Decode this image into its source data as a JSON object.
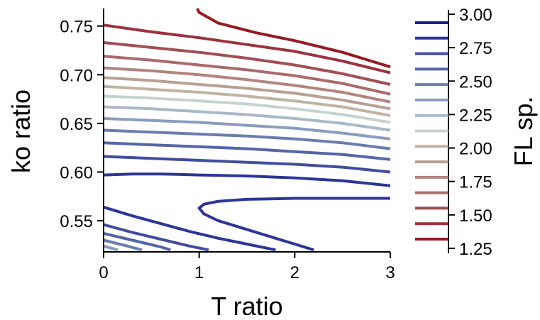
{
  "chart_data": {
    "type": "line",
    "title": "",
    "xlabel": "T ratio",
    "ylabel": "ko ratio",
    "xlim": [
      0,
      3
    ],
    "ylim": [
      0.518,
      0.768
    ],
    "xticks": [
      0,
      1,
      2,
      3
    ],
    "xtick_labels": [
      "0",
      "1",
      "2",
      "3"
    ],
    "yticks": [
      0.55,
      0.6,
      0.65,
      0.7,
      0.75
    ],
    "ytick_labels": [
      "0.55",
      "0.60",
      "0.65",
      "0.70",
      "0.75"
    ],
    "grid": false,
    "colorbar": {
      "label": "FL sp.",
      "ticks": [
        3.0,
        2.75,
        2.5,
        2.25,
        2.0,
        1.75,
        1.5,
        1.25
      ],
      "tick_labels": [
        "3.00",
        "2.75",
        "2.50",
        "2.25",
        "2.00",
        "1.75",
        "1.50",
        "1.25"
      ],
      "levels": [
        3.0,
        2.875,
        2.75,
        2.625,
        2.5,
        2.375,
        2.25,
        2.125,
        2.0,
        1.875,
        1.75,
        1.625,
        1.5,
        1.375,
        1.25
      ],
      "colors": [
        "#1a1f91",
        "#2d3597",
        "#414da0",
        "#5565a8",
        "#6b7daf",
        "#8b9cbd",
        "#a9b8c9",
        "#c6d3cd",
        "#c0b3a2",
        "#b99f94",
        "#b2847f",
        "#a96a6b",
        "#a04f55",
        "#9b323d",
        "#951b23"
      ]
    },
    "series": [
      {
        "level": 1.25,
        "color": "#951b23",
        "points": [
          [
            0.98,
            0.768
          ],
          [
            1.0,
            0.764
          ],
          [
            1.2,
            0.753
          ],
          [
            1.6,
            0.743
          ],
          [
            2.0,
            0.735
          ],
          [
            2.5,
            0.723
          ],
          [
            3.0,
            0.708
          ]
        ]
      },
      {
        "level": 1.375,
        "color": "#9b323d",
        "points": [
          [
            0,
            0.751
          ],
          [
            0.5,
            0.744
          ],
          [
            1.0,
            0.738
          ],
          [
            1.5,
            0.731
          ],
          [
            2.0,
            0.724
          ],
          [
            2.5,
            0.714
          ],
          [
            3.0,
            0.702
          ]
        ]
      },
      {
        "level": 1.5,
        "color": "#a04f55",
        "points": [
          [
            0,
            0.733
          ],
          [
            0.5,
            0.728
          ],
          [
            1.0,
            0.723
          ],
          [
            1.5,
            0.717
          ],
          [
            2.0,
            0.71
          ],
          [
            2.5,
            0.701
          ],
          [
            3.0,
            0.69
          ]
        ]
      },
      {
        "level": 1.625,
        "color": "#a96a6b",
        "points": [
          [
            0,
            0.719
          ],
          [
            0.5,
            0.715
          ],
          [
            1.0,
            0.71
          ],
          [
            1.5,
            0.705
          ],
          [
            2.0,
            0.699
          ],
          [
            2.5,
            0.691
          ],
          [
            3.0,
            0.68
          ]
        ]
      },
      {
        "level": 1.75,
        "color": "#b2847f",
        "points": [
          [
            0,
            0.707
          ],
          [
            0.5,
            0.704
          ],
          [
            1.0,
            0.7
          ],
          [
            1.5,
            0.695
          ],
          [
            2.0,
            0.689
          ],
          [
            2.5,
            0.682
          ],
          [
            3.0,
            0.672
          ]
        ]
      },
      {
        "level": 1.875,
        "color": "#b99f94",
        "points": [
          [
            0,
            0.697
          ],
          [
            0.5,
            0.694
          ],
          [
            1.0,
            0.69
          ],
          [
            1.5,
            0.686
          ],
          [
            2.0,
            0.681
          ],
          [
            2.5,
            0.674
          ],
          [
            3.0,
            0.665
          ]
        ]
      },
      {
        "level": 2.0,
        "color": "#c0b3a2",
        "points": [
          [
            0,
            0.688
          ],
          [
            0.5,
            0.685
          ],
          [
            1.0,
            0.682
          ],
          [
            1.5,
            0.678
          ],
          [
            2.0,
            0.673
          ],
          [
            2.5,
            0.667
          ],
          [
            3.0,
            0.658
          ]
        ]
      },
      {
        "level": 2.125,
        "color": "#c6d3cd",
        "points": [
          [
            0,
            0.678
          ],
          [
            0.5,
            0.676
          ],
          [
            1.0,
            0.673
          ],
          [
            1.5,
            0.67
          ],
          [
            2.0,
            0.665
          ],
          [
            2.5,
            0.659
          ],
          [
            3.0,
            0.651
          ]
        ]
      },
      {
        "level": 2.25,
        "color": "#a9b8c9",
        "points": [
          [
            0,
            0.667
          ],
          [
            0.5,
            0.665
          ],
          [
            1.0,
            0.662
          ],
          [
            1.5,
            0.659
          ],
          [
            2.0,
            0.655
          ],
          [
            2.5,
            0.65
          ],
          [
            3.0,
            0.643
          ]
        ]
      },
      {
        "level": 2.375,
        "color": "#8b9cbd",
        "points": [
          [
            0,
            0.655
          ],
          [
            0.5,
            0.653
          ],
          [
            1.0,
            0.651
          ],
          [
            1.5,
            0.648
          ],
          [
            2.0,
            0.645
          ],
          [
            2.5,
            0.64
          ],
          [
            3.0,
            0.634
          ]
        ]
      },
      {
        "level": 2.5,
        "color": "#6b7daf",
        "points": [
          [
            0,
            0.643
          ],
          [
            0.5,
            0.641
          ],
          [
            1.0,
            0.639
          ],
          [
            1.5,
            0.637
          ],
          [
            2.0,
            0.634
          ],
          [
            2.5,
            0.63
          ],
          [
            3.0,
            0.624
          ]
        ]
      },
      {
        "level": 2.625,
        "color": "#5565a8",
        "points": [
          [
            0,
            0.63
          ],
          [
            0.5,
            0.628
          ],
          [
            1.0,
            0.626
          ],
          [
            1.5,
            0.624
          ],
          [
            2.0,
            0.621
          ],
          [
            2.5,
            0.618
          ],
          [
            3.0,
            0.613
          ]
        ]
      },
      {
        "level": 2.75,
        "color": "#414da0",
        "points": [
          [
            0,
            0.616
          ],
          [
            0.5,
            0.614
          ],
          [
            1.0,
            0.612
          ],
          [
            1.5,
            0.61
          ],
          [
            2.0,
            0.608
          ],
          [
            2.5,
            0.605
          ],
          [
            3.0,
            0.6
          ]
        ]
      },
      {
        "level": 2.875,
        "color": "#2d3597",
        "points": [
          [
            0,
            0.597
          ],
          [
            0.3,
            0.598
          ],
          [
            0.6,
            0.598
          ],
          [
            1.0,
            0.597
          ],
          [
            1.5,
            0.596
          ],
          [
            2.0,
            0.594
          ],
          [
            2.5,
            0.591
          ],
          [
            3.0,
            0.586
          ]
        ]
      },
      {
        "level": 2.875,
        "color": "#2d3597",
        "points": [
          [
            3.0,
            0.573
          ],
          [
            2.5,
            0.573
          ],
          [
            2.0,
            0.573
          ],
          [
            1.5,
            0.572
          ],
          [
            1.2,
            0.57
          ],
          [
            1.05,
            0.567
          ],
          [
            1.0,
            0.563
          ],
          [
            1.05,
            0.557
          ],
          [
            1.2,
            0.55
          ],
          [
            1.5,
            0.541
          ],
          [
            1.8,
            0.532
          ],
          [
            2.0,
            0.526
          ],
          [
            2.2,
            0.52
          ]
        ]
      },
      {
        "level": 2.875,
        "color": "#2d3597",
        "points": [
          [
            0,
            0.564
          ],
          [
            0.3,
            0.555
          ],
          [
            0.6,
            0.547
          ],
          [
            0.9,
            0.539
          ],
          [
            1.2,
            0.532
          ],
          [
            1.5,
            0.526
          ],
          [
            1.8,
            0.52
          ]
        ]
      },
      {
        "level": 2.75,
        "color": "#414da0",
        "points": [
          [
            0,
            0.546
          ],
          [
            0.3,
            0.538
          ],
          [
            0.6,
            0.531
          ],
          [
            0.9,
            0.524
          ],
          [
            1.1,
            0.52
          ]
        ]
      },
      {
        "level": 2.625,
        "color": "#5565a8",
        "points": [
          [
            0,
            0.537
          ],
          [
            0.3,
            0.53
          ],
          [
            0.6,
            0.523
          ],
          [
            0.7,
            0.52
          ]
        ]
      },
      {
        "level": 2.5,
        "color": "#6b7daf",
        "points": [
          [
            0,
            0.53
          ],
          [
            0.25,
            0.524
          ],
          [
            0.4,
            0.52
          ]
        ]
      },
      {
        "level": 2.375,
        "color": "#8b9cbd",
        "points": [
          [
            0,
            0.524
          ],
          [
            0.15,
            0.52
          ]
        ]
      }
    ]
  }
}
